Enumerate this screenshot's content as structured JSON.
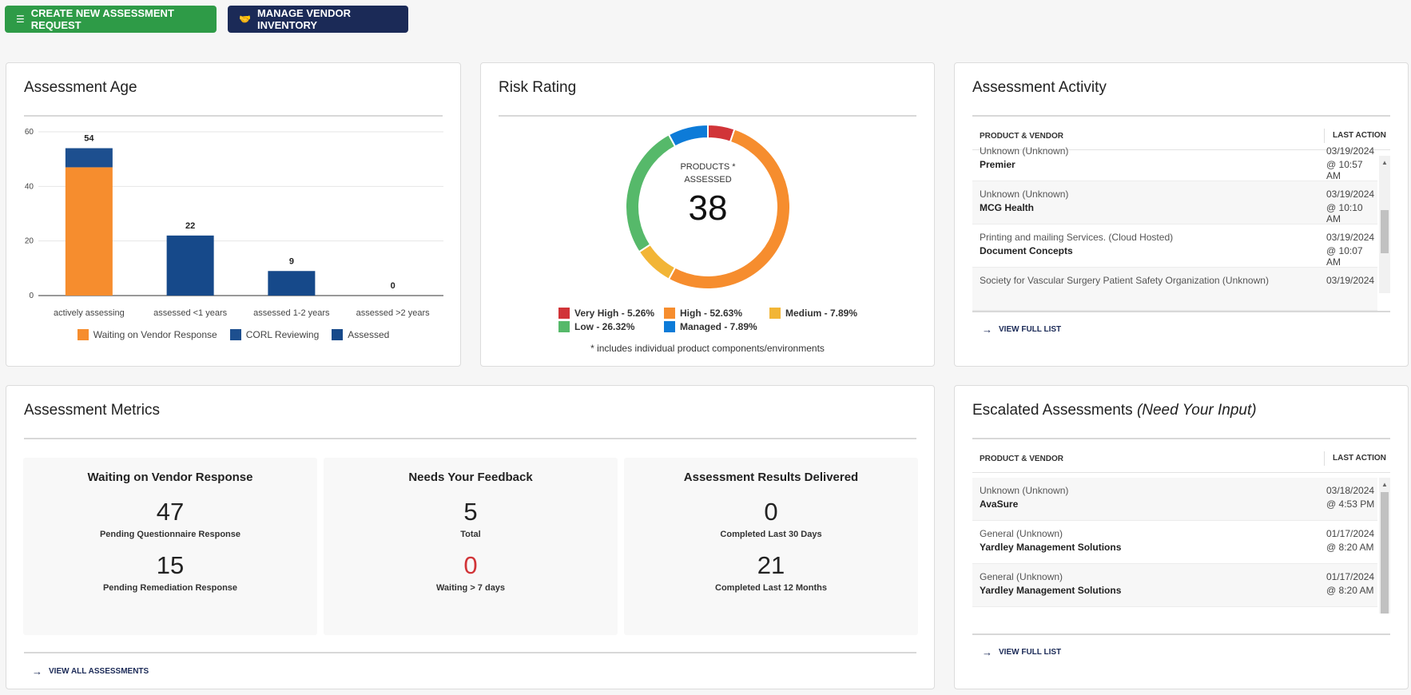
{
  "buttons": {
    "create": "CREATE NEW ASSESSMENT REQUEST",
    "manage": "MANAGE VENDOR INVENTORY"
  },
  "chart_data": [
    {
      "type": "bar",
      "stacked": true,
      "title": "Assessment Age",
      "categories": [
        "actively assessing",
        "assessed <1 years",
        "assessed 1-2 years",
        "assessed >2 years"
      ],
      "series": [
        {
          "name": "Waiting on Vendor Response",
          "color": "#f68d2e",
          "values": [
            47,
            0,
            0,
            0
          ]
        },
        {
          "name": "CORL Reviewing",
          "color": "#1d4f8f",
          "values": [
            7,
            0,
            0,
            0
          ]
        },
        {
          "name": "Assessed",
          "color": "#16498a",
          "values": [
            0,
            22,
            9,
            0
          ]
        }
      ],
      "total_labels": [
        54,
        22,
        9,
        0
      ],
      "ylim": [
        0,
        60
      ],
      "yticks": [
        0,
        20,
        40,
        60
      ],
      "grid": true,
      "legend": "bottom"
    },
    {
      "type": "pie",
      "donut": true,
      "title": "Risk Rating",
      "categories": [
        "Very High - 5.26%",
        "High - 52.63%",
        "Medium - 7.89%",
        "Low - 26.32%",
        "Managed - 7.89%"
      ],
      "values": [
        5.26,
        52.63,
        7.89,
        26.32,
        7.89
      ],
      "colors": [
        "#d13438",
        "#f68d2e",
        "#f2b536",
        "#56b96a",
        "#0d7bd8"
      ],
      "center_label": [
        "PRODUCTS *",
        "ASSESSED"
      ],
      "center_value": 38,
      "note": "* includes individual product components/environments"
    }
  ],
  "activity": {
    "title": "Assessment Activity",
    "columns": [
      "PRODUCT & VENDOR",
      "LAST ACTION"
    ],
    "rows": [
      {
        "product": "Unknown (Unknown)",
        "vendor": "Premier",
        "date": "03/19/2024",
        "time": "@ 10:57 AM"
      },
      {
        "product": "Unknown (Unknown)",
        "vendor": "MCG Health",
        "date": "03/19/2024",
        "time": "@ 10:10 AM"
      },
      {
        "product": "Printing and mailing Services. (Cloud Hosted)",
        "vendor": "Document Concepts",
        "date": "03/19/2024",
        "time": "@ 10:07 AM"
      },
      {
        "product": "Society for Vascular Surgery Patient Safety Organization (Unknown)",
        "date": "03/19/2024"
      }
    ],
    "link": "VIEW FULL LIST"
  },
  "metrics": {
    "title": "Assessment Metrics",
    "cards": [
      {
        "title": "Waiting on Vendor Response",
        "items": [
          {
            "value": 47,
            "label": "Pending Questionnaire Response"
          },
          {
            "value": 15,
            "label": "Pending Remediation Response"
          }
        ]
      },
      {
        "title": "Needs Your Feedback",
        "items": [
          {
            "value": 5,
            "label": "Total"
          },
          {
            "value": 0,
            "label": "Waiting > 7 days",
            "color": "#d13438"
          }
        ]
      },
      {
        "title": "Assessment Results Delivered",
        "items": [
          {
            "value": 0,
            "label": "Completed Last 30 Days"
          },
          {
            "value": 21,
            "label": "Completed Last 12 Months"
          }
        ]
      }
    ],
    "link": "VIEW ALL ASSESSMENTS"
  },
  "escalated": {
    "title": "Escalated Assessments",
    "subtitle": "(Need Your Input)",
    "columns": [
      "PRODUCT & VENDOR",
      "LAST ACTION"
    ],
    "rows": [
      {
        "product": "Unknown (Unknown)",
        "vendor": "AvaSure",
        "date": "03/18/2024",
        "time": "@ 4:53 PM"
      },
      {
        "product": "General (Unknown)",
        "vendor": "Yardley Management Solutions",
        "date": "01/17/2024",
        "time": "@ 8:20 AM"
      },
      {
        "product": "General (Unknown)",
        "vendor": "Yardley Management Solutions",
        "date": "01/17/2024",
        "time": "@ 8:20 AM"
      }
    ],
    "link": "VIEW FULL LIST"
  }
}
